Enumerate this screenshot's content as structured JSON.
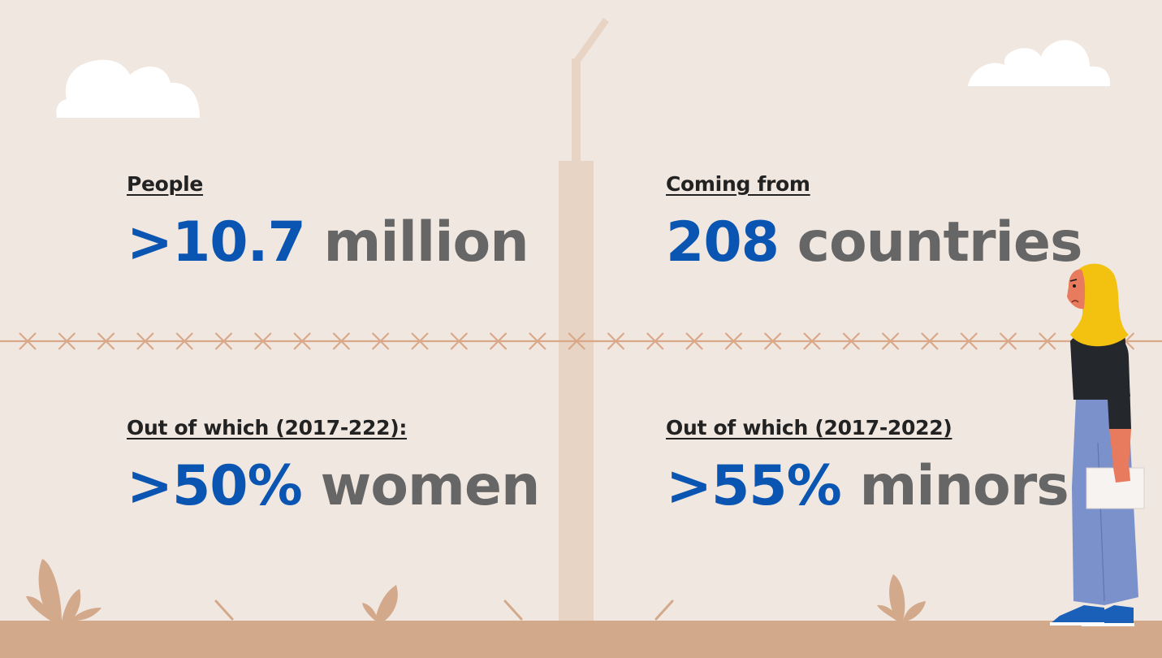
{
  "stats": {
    "people": {
      "label": "People",
      "number": ">10.7",
      "unit": "million"
    },
    "countries": {
      "label": "Coming from",
      "number": "208",
      "unit": "countries"
    },
    "women": {
      "label": "Out of which (2017-222):",
      "number": ">50%",
      "unit": "women"
    },
    "minors": {
      "label": "Out of which (2017-2022)",
      "number": ">55%",
      "unit": "minors"
    }
  },
  "colors": {
    "background": "#f1e7e1",
    "accent_blue": "#0a55b2",
    "text_gray": "#666666",
    "ground": "#d3a98b",
    "post": "#e8d4c4",
    "wire": "#d9a889"
  },
  "illustration": {
    "icons": [
      "cloud-icon",
      "fence-post-icon",
      "barbed-wire-icon",
      "plant-icon",
      "woman-refugee-icon"
    ]
  }
}
